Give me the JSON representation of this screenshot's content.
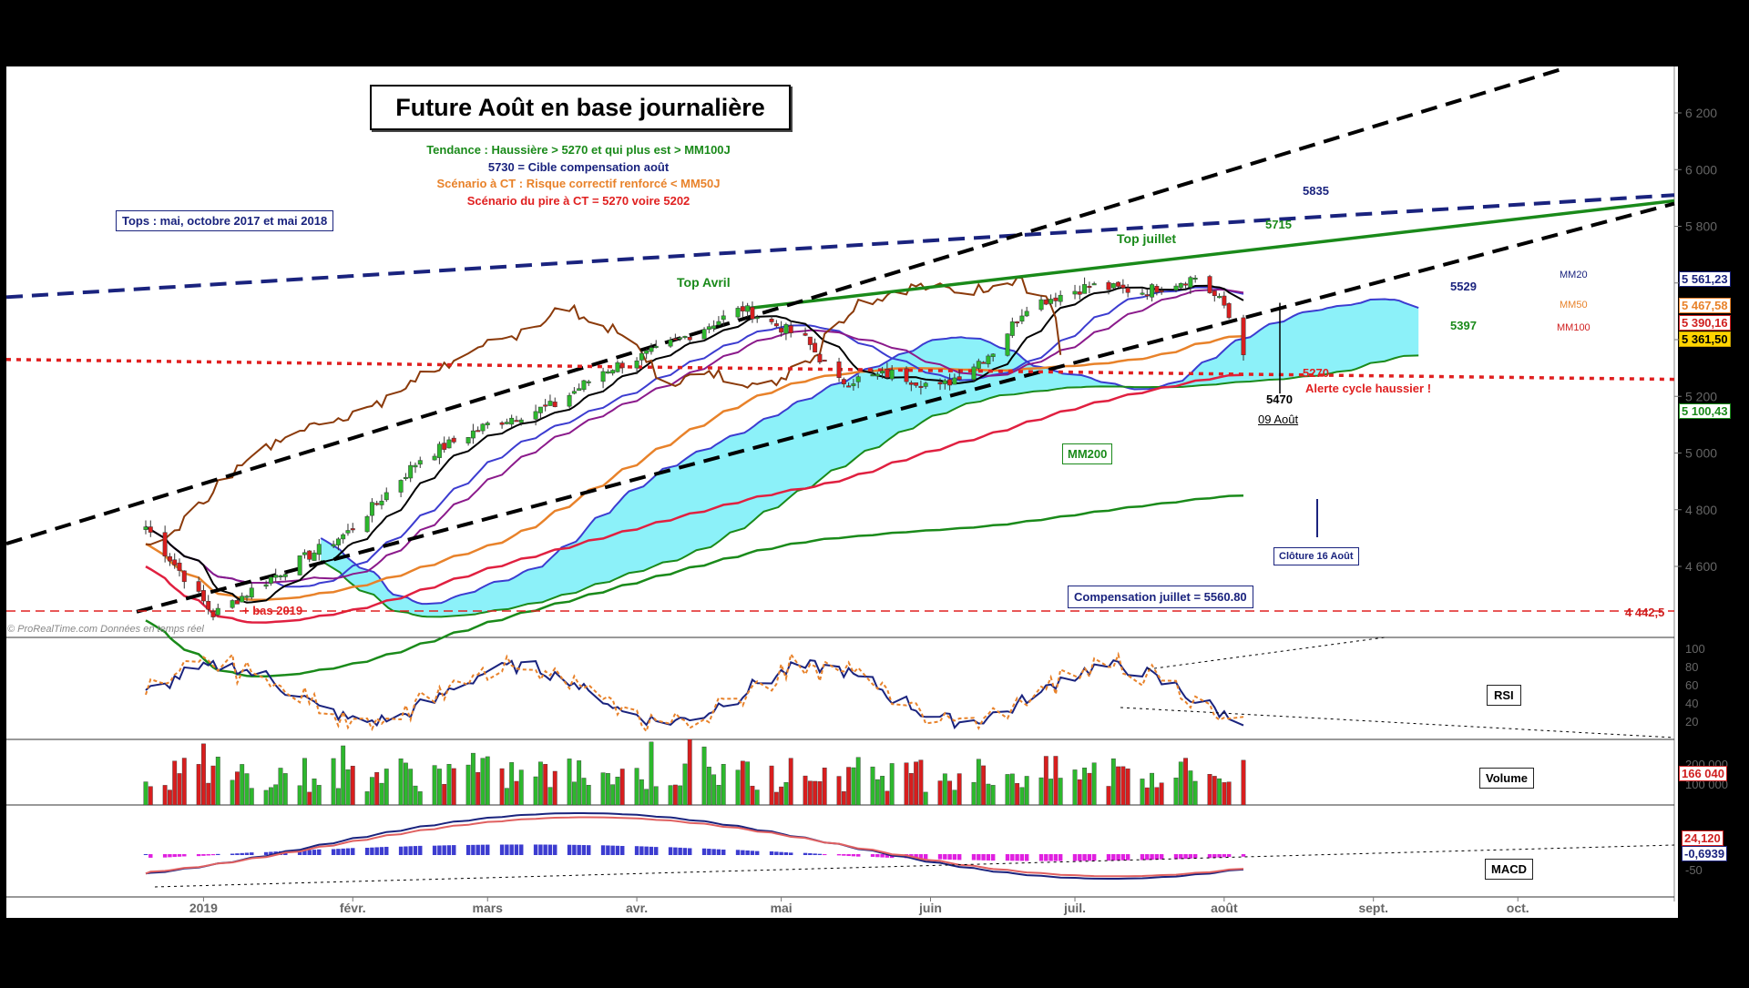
{
  "header": {
    "title": "Future Août en base journalière",
    "lines": [
      {
        "text": "Tendance : Haussière > 5270 et qui plus est > MM100J",
        "color": "#1a8a1a"
      },
      {
        "text": "5730 = Cible compensation août",
        "color": "#1a237e"
      },
      {
        "text": "Scénario à CT : Risque correctif renforcé < MM50J",
        "color": "#e8822a"
      },
      {
        "text": "Scénario du pire à CT = 5270 voire 5202",
        "color": "#e02020"
      }
    ]
  },
  "watermark": "© ProRealTime.com Données en temps réel",
  "annotations": {
    "tops_box": "Tops : mai, octobre 2017 et mai 2018",
    "top_avril": "Top Avril",
    "top_juillet": "Top juillet",
    "lvl_5835": "5835",
    "lvl_5715": "5715",
    "lvl_5529": "5529",
    "lvl_5397": "5397",
    "lvl_5270": "5270",
    "alerte": "Alerte cycle haussier !",
    "lvl_5470": "5470",
    "date_0908": "09 Août",
    "mm200": "MM200",
    "cloture": "Clôture 16 Août",
    "compensation": "Compensation juillet = 5560.80",
    "bas_2019": "+ bas 2019",
    "mm20": "MM20",
    "mm50": "MM50",
    "mm100": "MM100"
  },
  "price_badges": [
    {
      "text": "5 561,23",
      "color": "#1a237e",
      "bg": "#ffffff"
    },
    {
      "text": "5 467,58",
      "color": "#e8822a",
      "bg": "#ffffff"
    },
    {
      "text": "5 390,16",
      "color": "#d02020",
      "bg": "#ffffff"
    },
    {
      "text": "5 361,50",
      "color": "#000000",
      "bg": "#ffd400"
    },
    {
      "text": "5 100,43",
      "color": "#1a8a1a",
      "bg": "#ffffff"
    },
    {
      "text": "4 442,5",
      "color": "#d02020",
      "bg": "none"
    }
  ],
  "panels": {
    "rsi": "RSI",
    "volume": "Volume",
    "macd": "MACD",
    "volume_badge": "166 040",
    "macd_badge1": "24,120",
    "macd_badge2": "-0,6939"
  },
  "colors": {
    "price_up": "#2db82d",
    "price_down": "#d81e1e",
    "mm20": "#3c3cd0",
    "mm50": "#e8822a",
    "mm100": "#e02040",
    "mm200": "#1a8a1a",
    "tenkan": "#000000",
    "kijun": "#8b1a8b",
    "chikou": "#8b3a0a",
    "cloud_bull": "#80f0f8",
    "cloud_bear": "#a8f0a8"
  },
  "chart_data": {
    "type": "candlestick",
    "title": "Future Août en base journalière",
    "y_axis": {
      "ticks": [
        4600,
        4800,
        5000,
        5200,
        5400,
        5600,
        5800,
        6000,
        6200
      ],
      "tick_labels": [
        "4 600",
        "4 800",
        "5 000",
        "5 200",
        "",
        "",
        "5 800",
        "6 000",
        "6 200"
      ],
      "ylim": [
        4420,
        6360
      ]
    },
    "x_axis": {
      "labels": [
        "2019",
        "févr.",
        "mars",
        "avr.",
        "mai",
        "juin",
        "juil.",
        "août",
        "sept.",
        "oct."
      ]
    },
    "price_path": [
      [
        "2018-12-20",
        4740
      ],
      [
        "2019-01-03",
        4430
      ],
      [
        "2019-01-15",
        4560
      ],
      [
        "2019-01-31",
        4720
      ],
      [
        "2019-02-15",
        4980
      ],
      [
        "2019-03-01",
        5100
      ],
      [
        "2019-03-15",
        5170
      ],
      [
        "2019-03-25",
        5290
      ],
      [
        "2019-04-05",
        5360
      ],
      [
        "2019-04-23",
        5510
      ],
      [
        "2019-05-06",
        5400
      ],
      [
        "2019-05-13",
        5250
      ],
      [
        "2019-05-24",
        5280
      ],
      [
        "2019-06-03",
        5230
      ],
      [
        "2019-06-14",
        5360
      ],
      [
        "2019-06-21",
        5520
      ],
      [
        "2019-07-04",
        5590
      ],
      [
        "2019-07-15",
        5570
      ],
      [
        "2019-07-26",
        5620
      ],
      [
        "2019-08-01",
        5520
      ],
      [
        "2019-08-05",
        5361.5
      ]
    ],
    "moving_averages": [
      {
        "name": "MM20",
        "last": 5561.23
      },
      {
        "name": "MM50",
        "last": 5467.58
      },
      {
        "name": "MM100",
        "last": 5390.16
      },
      {
        "name": "MM200",
        "last": 5100.43
      }
    ],
    "last_price": 5361.5,
    "levels": [
      {
        "label": "5835",
        "value": 5835
      },
      {
        "label": "5715",
        "value": 5715
      },
      {
        "label": "5529",
        "value": 5529
      },
      {
        "label": "5470",
        "value": 5470
      },
      {
        "label": "5397",
        "value": 5397
      },
      {
        "label": "5270",
        "value": 5270
      },
      {
        "label": "4 442,5",
        "value": 4442.5
      }
    ],
    "indicators": {
      "rsi": {
        "ticks": [
          20,
          40,
          60,
          80,
          100
        ]
      },
      "volume": {
        "last": 166040,
        "ticks": [
          100000,
          200000
        ]
      },
      "macd": {
        "value": 24.12,
        "signal_diff": -0.6939,
        "ticks": [
          -50
        ]
      }
    }
  }
}
